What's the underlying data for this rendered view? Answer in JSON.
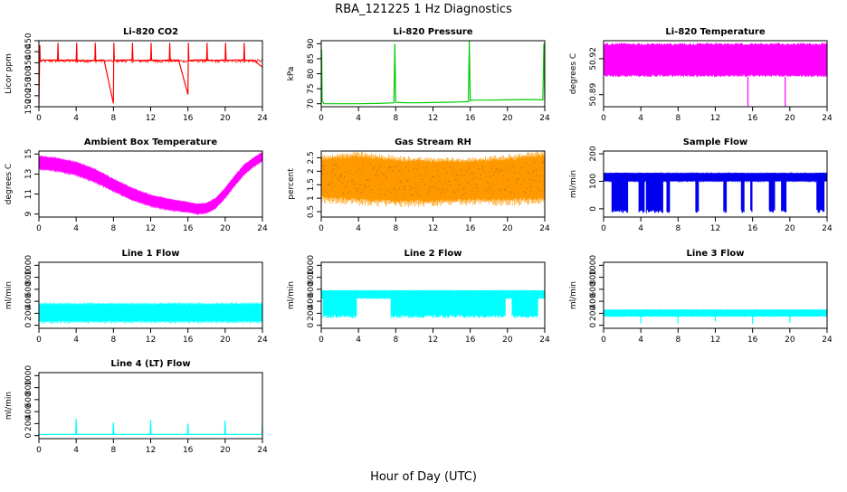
{
  "figure": {
    "title": "RBA_121225  1 Hz Diagnostics",
    "xlabel": "Hour of Day (UTC)"
  },
  "chart_data": [
    {
      "type": "line",
      "title": "Li-820 CO2",
      "ylabel": "Licor ppm",
      "color": "#ff0000",
      "xlim": [
        0,
        24
      ],
      "ylim": [
        150,
        450
      ],
      "xticks": [
        0,
        4,
        8,
        12,
        16,
        20,
        24
      ],
      "yticks": [
        150,
        200,
        250,
        300,
        350,
        400,
        450
      ],
      "series": [
        {
          "name": "CO2",
          "x": [
            0,
            0.1,
            0.15,
            0.2,
            1,
            2,
            2.05,
            2.1,
            3,
            4,
            4.05,
            4.1,
            5,
            6,
            6.05,
            6.1,
            7,
            8,
            8.05,
            8.1,
            9,
            10,
            10.05,
            10.1,
            11,
            12,
            12.05,
            12.1,
            13,
            14,
            14.05,
            14.1,
            15,
            16,
            16.05,
            16.1,
            17,
            18,
            18.05,
            18.1,
            19,
            20,
            20.05,
            20.1,
            21,
            22,
            22.05,
            22.1,
            23,
            24
          ],
          "y": [
            160,
            430,
            355,
            360,
            362,
            362,
            440,
            360,
            362,
            362,
            440,
            360,
            360,
            360,
            440,
            360,
            362,
            165,
            440,
            360,
            362,
            362,
            440,
            360,
            360,
            362,
            440,
            362,
            360,
            362,
            440,
            360,
            362,
            205,
            440,
            360,
            362,
            362,
            440,
            360,
            360,
            362,
            440,
            360,
            362,
            362,
            440,
            360,
            362,
            330
          ]
        }
      ]
    },
    {
      "type": "line",
      "title": "Li-820 Pressure",
      "ylabel": "kPa",
      "color": "#00cc00",
      "xlim": [
        0,
        24
      ],
      "ylim": [
        69,
        91
      ],
      "xticks": [
        0,
        4,
        8,
        12,
        16,
        20,
        24
      ],
      "yticks": [
        70,
        75,
        80,
        85,
        90
      ],
      "series": [
        {
          "name": "Pressure",
          "x": [
            0,
            0.05,
            0.1,
            0.3,
            2,
            4,
            6,
            7.8,
            7.9,
            8.0,
            8.1,
            10,
            12,
            14,
            15.8,
            15.9,
            16.0,
            16.1,
            18,
            20,
            22,
            23.8,
            23.9,
            24.0
          ],
          "y": [
            70,
            88,
            71,
            70,
            70,
            70,
            70.1,
            70.3,
            90,
            70.5,
            70.4,
            70.3,
            70.4,
            70.5,
            70.7,
            91,
            71,
            71.2,
            71.2,
            71.3,
            71.4,
            71.3,
            90,
            71
          ]
        }
      ]
    },
    {
      "type": "area",
      "title": "Li-820 Temperature",
      "ylabel": "degrees C",
      "color": "#ff00ff",
      "xlim": [
        0,
        24
      ],
      "ylim": [
        50.88,
        50.935
      ],
      "xticks": [
        0,
        4,
        8,
        12,
        16,
        20,
        24
      ],
      "yticks": [
        50.89,
        50.92
      ],
      "series": [
        {
          "name": "Temperature",
          "x": [
            0,
            24
          ],
          "ymin": [
            50.905,
            50.905
          ],
          "ymax": [
            50.933,
            50.933
          ],
          "spikes": [
            {
              "x": 15.5,
              "y": 50.88
            },
            {
              "x": 19.5,
              "y": 50.88
            }
          ]
        }
      ]
    },
    {
      "type": "area",
      "title": "Ambient Box Temperature",
      "ylabel": "degrees C",
      "color": "#ff00ff",
      "xlim": [
        0,
        24
      ],
      "ylim": [
        8.7,
        15.3
      ],
      "xticks": [
        0,
        4,
        8,
        12,
        16,
        20,
        24
      ],
      "yticks": [
        9,
        11,
        13,
        15
      ],
      "series": [
        {
          "name": "Box Temp",
          "x": [
            0,
            2,
            4,
            6,
            8,
            10,
            12,
            14,
            16,
            17,
            18,
            19,
            20,
            21,
            22,
            23,
            24
          ],
          "ymin": [
            13.5,
            13.3,
            12.9,
            12.2,
            11.3,
            10.4,
            9.8,
            9.4,
            9.2,
            9.0,
            9.1,
            9.6,
            10.6,
            11.8,
            12.9,
            13.7,
            14.3
          ],
          "ymax": [
            14.8,
            14.6,
            14.2,
            13.5,
            12.5,
            11.6,
            10.9,
            10.5,
            10.2,
            10.0,
            10.1,
            10.6,
            11.6,
            12.8,
            13.9,
            14.6,
            15.2
          ]
        }
      ]
    },
    {
      "type": "area",
      "title": "Gas Stream RH",
      "ylabel": "percent",
      "color": "#ff9900",
      "xlim": [
        0,
        24
      ],
      "ylim": [
        0.3,
        2.75
      ],
      "xticks": [
        0,
        4,
        8,
        12,
        16,
        20,
        24
      ],
      "yticks": [
        0.5,
        1.0,
        1.5,
        2.0,
        2.5
      ],
      "series": [
        {
          "name": "RH",
          "x": [
            0,
            4,
            8,
            12,
            16,
            20,
            24
          ],
          "ymin": [
            1.0,
            0.9,
            0.85,
            0.85,
            0.9,
            0.9,
            0.95
          ],
          "ymax": [
            2.5,
            2.6,
            2.45,
            2.4,
            2.4,
            2.5,
            2.65
          ]
        }
      ]
    },
    {
      "type": "area",
      "title": "Sample Flow",
      "ylabel": "ml/min",
      "color": "#0000ee",
      "xlim": [
        0,
        24
      ],
      "ylim": [
        -30,
        210
      ],
      "xticks": [
        0,
        4,
        8,
        12,
        16,
        20,
        24
      ],
      "yticks": [
        0,
        100,
        200
      ],
      "series": [
        {
          "name": "Sample Flow",
          "x": [
            0,
            24
          ],
          "ymin": [
            100,
            100
          ],
          "ymax": [
            130,
            130
          ],
          "dropouts": [
            [
              0.9,
              2.6
            ],
            [
              3.8,
              4.4
            ],
            [
              4.6,
              6.4
            ],
            [
              6.8,
              7.1
            ],
            [
              9.9,
              10.2
            ],
            [
              12.9,
              13.2
            ],
            [
              14.8,
              15.1
            ],
            [
              15.8,
              16.0
            ],
            [
              17.8,
              18.4
            ],
            [
              19.1,
              19.6
            ],
            [
              22.9,
              23.7
            ]
          ]
        }
      ]
    },
    {
      "type": "area",
      "title": "Line 1 Flow",
      "ylabel": "ml/min",
      "color": "#00ffff",
      "xlim": [
        0,
        24
      ],
      "ylim": [
        -50,
        1050
      ],
      "xticks": [
        0,
        4,
        8,
        12,
        16,
        20,
        24
      ],
      "yticks": [
        0,
        200,
        400,
        600,
        800,
        1000
      ],
      "series": [
        {
          "name": "Line 1",
          "x": [
            0,
            24
          ],
          "ymin": [
            60,
            60
          ],
          "ymax": [
            360,
            360
          ]
        }
      ]
    },
    {
      "type": "area",
      "title": "Line 2 Flow",
      "ylabel": "ml/min",
      "color": "#00ffff",
      "xlim": [
        0,
        24
      ],
      "ylim": [
        -50,
        1050
      ],
      "xticks": [
        0,
        4,
        8,
        12,
        16,
        20,
        24
      ],
      "yticks": [
        0,
        200,
        400,
        600,
        800,
        1000
      ],
      "series": [
        {
          "name": "Line 2",
          "x": [
            0,
            24
          ],
          "ymin": [
            450,
            450
          ],
          "ymax": [
            580,
            580
          ],
          "dropouts": [
            [
              0.2,
              3.8
            ],
            [
              7.5,
              19.8
            ],
            [
              20.5,
              23.3
            ]
          ],
          "dropout_min": 120
        }
      ]
    },
    {
      "type": "area",
      "title": "Line 3 Flow",
      "ylabel": "ml/min",
      "color": "#00ffff",
      "xlim": [
        0,
        24
      ],
      "ylim": [
        -50,
        1050
      ],
      "xticks": [
        0,
        4,
        8,
        12,
        16,
        20,
        24
      ],
      "yticks": [
        0,
        200,
        400,
        600,
        800,
        1000
      ],
      "series": [
        {
          "name": "Line 3",
          "x": [
            0,
            24
          ],
          "ymin": [
            150,
            150
          ],
          "ymax": [
            260,
            260
          ],
          "spikes": [
            {
              "x": 4,
              "y": 30
            },
            {
              "x": 8,
              "y": 30
            },
            {
              "x": 12,
              "y": 60
            },
            {
              "x": 16,
              "y": 20
            },
            {
              "x": 20,
              "y": 40
            }
          ]
        }
      ]
    },
    {
      "type": "line",
      "title": "Line 4 (LT) Flow",
      "ylabel": "ml/min",
      "color": "#00ffff",
      "xlim": [
        0,
        24
      ],
      "ylim": [
        -50,
        1050
      ],
      "xticks": [
        0,
        4,
        8,
        12,
        16,
        20,
        24
      ],
      "yticks": [
        0,
        200,
        400,
        600,
        800,
        1000
      ],
      "series": [
        {
          "name": "Line 4",
          "x": [
            0,
            3.95,
            4.0,
            4.05,
            7.95,
            8.0,
            8.05,
            11.95,
            12.0,
            12.05,
            15.95,
            16.0,
            16.05,
            19.95,
            20.0,
            20.05,
            23.95,
            24.0
          ],
          "y": [
            20,
            20,
            280,
            20,
            20,
            220,
            20,
            20,
            260,
            20,
            20,
            200,
            20,
            20,
            250,
            20,
            20,
            200
          ]
        }
      ]
    }
  ]
}
